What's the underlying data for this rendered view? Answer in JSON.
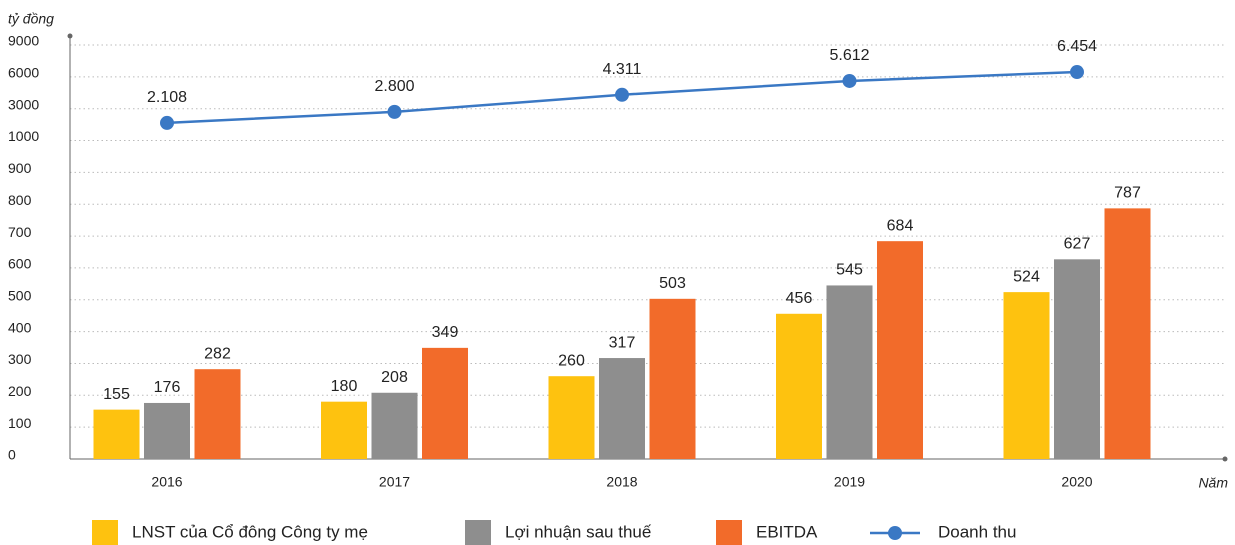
{
  "chart_data": {
    "type": "bar-line",
    "y_label": "tỷ đồng",
    "x_label": "Năm",
    "categories": [
      "2016",
      "2017",
      "2018",
      "2019",
      "2020"
    ],
    "series": [
      {
        "name": "LNST của Cổ đông Công ty mẹ",
        "type": "bar",
        "color": "#fec20f",
        "values": [
          155,
          180,
          260,
          456,
          524
        ]
      },
      {
        "name": "Lợi nhuận sau thuế",
        "type": "bar",
        "color": "#8e8e8e",
        "values": [
          176,
          208,
          317,
          545,
          627
        ]
      },
      {
        "name": "EBITDA",
        "type": "bar",
        "color": "#f26b2a",
        "values": [
          282,
          349,
          503,
          684,
          787
        ]
      },
      {
        "name": "Doanh thu",
        "type": "line",
        "color": "#3a78c4",
        "values": [
          2108,
          2800,
          4311,
          5612,
          6454
        ],
        "value_labels": [
          "2.108",
          "2.800",
          "4.311",
          "5.612",
          "6.454"
        ]
      }
    ],
    "ylim": [
      0,
      9000
    ],
    "yticks": [
      0,
      100,
      200,
      300,
      400,
      500,
      600,
      700,
      800,
      900,
      1000,
      3000,
      6000,
      9000
    ],
    "y_scale": "tick-interpolated",
    "grid": true
  }
}
